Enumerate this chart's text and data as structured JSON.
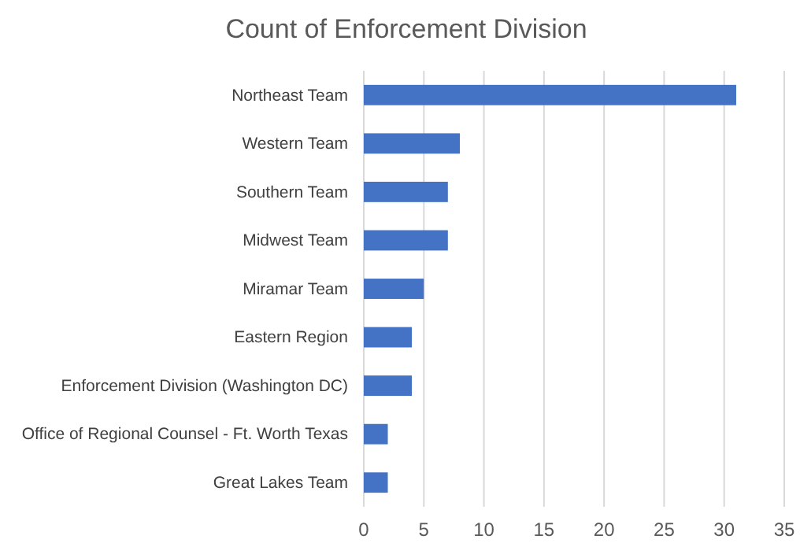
{
  "chart_data": {
    "type": "bar",
    "orientation": "horizontal",
    "title": "Count of Enforcement Division",
    "categories": [
      "Northeast Team",
      "Western Team",
      "Southern Team",
      "Midwest Team",
      "Miramar Team",
      "Eastern Region",
      "Enforcement Division (Washington DC)",
      "Office of Regional Counsel - Ft. Worth Texas",
      "Great Lakes Team"
    ],
    "values": [
      31,
      8,
      7,
      7,
      5,
      4,
      4,
      2,
      2
    ],
    "color": "#4472c4",
    "xlim": [
      0,
      35
    ],
    "xticks": [
      0,
      5,
      10,
      15,
      20,
      25,
      30,
      35
    ],
    "grid": "x"
  }
}
